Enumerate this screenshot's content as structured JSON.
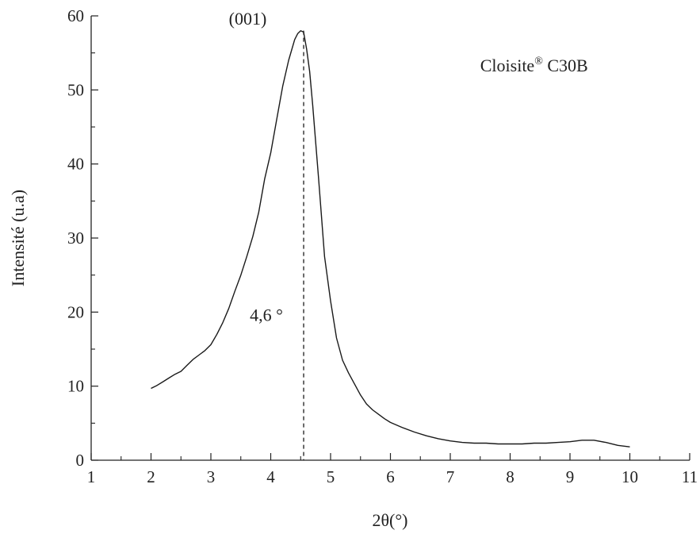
{
  "chart_data": {
    "type": "line",
    "title": "",
    "xlabel": "2θ(°)",
    "ylabel": "Intensité (u.a)",
    "xlim": [
      1,
      11
    ],
    "ylim": [
      0,
      60
    ],
    "x_ticks": [
      1,
      2,
      3,
      4,
      5,
      6,
      7,
      8,
      9,
      10,
      11
    ],
    "y_ticks": [
      0,
      10,
      20,
      30,
      40,
      50,
      60
    ],
    "grid": false,
    "legend": "none",
    "colors": {
      "line": "#1a1a1a",
      "axis": "#222222"
    },
    "series": [
      {
        "x": [
          2.0,
          2.1,
          2.2,
          2.3,
          2.4,
          2.5,
          2.6,
          2.7,
          2.8,
          2.9,
          3.0,
          3.1,
          3.2,
          3.3,
          3.4,
          3.5,
          3.6,
          3.7,
          3.8,
          3.9,
          4.0,
          4.1,
          4.2,
          4.3,
          4.4,
          4.45,
          4.5,
          4.55,
          4.6,
          4.65,
          4.7,
          4.8,
          4.9,
          5.0,
          5.1,
          5.2,
          5.3,
          5.4,
          5.5,
          5.6,
          5.7,
          5.8,
          5.9,
          6.0,
          6.2,
          6.4,
          6.6,
          6.8,
          7.0,
          7.2,
          7.4,
          7.6,
          7.8,
          8.0,
          8.2,
          8.4,
          8.6,
          8.8,
          9.0,
          9.2,
          9.4,
          9.6,
          9.8,
          10.0
        ],
        "values": [
          9.7,
          10.1,
          10.6,
          11.1,
          11.6,
          12.0,
          12.8,
          13.6,
          14.2,
          14.8,
          15.6,
          17.0,
          18.6,
          20.5,
          22.8,
          25.0,
          27.5,
          30.2,
          33.5,
          38.0,
          41.5,
          46.0,
          50.5,
          54.0,
          56.8,
          57.6,
          58.0,
          57.8,
          55.5,
          52.5,
          48.0,
          38.0,
          27.5,
          21.5,
          16.5,
          13.5,
          11.8,
          10.3,
          8.8,
          7.6,
          6.8,
          6.2,
          5.6,
          5.1,
          4.4,
          3.8,
          3.3,
          2.9,
          2.6,
          2.4,
          2.3,
          2.3,
          2.2,
          2.2,
          2.2,
          2.3,
          2.3,
          2.4,
          2.5,
          2.7,
          2.7,
          2.4,
          2.0,
          1.8
        ]
      }
    ],
    "annotations": [
      {
        "text": "(001)",
        "x": 3.3,
        "y": 58.8
      },
      {
        "text": "4,6 °",
        "x": 3.65,
        "y": 18.8
      },
      {
        "text": "Cloisite",
        "sup": "®",
        "text2": " C30B",
        "x": 7.5,
        "y": 52.5
      }
    ],
    "peak_marker": {
      "x": 4.55,
      "y": 58.0,
      "style": "dashed"
    }
  }
}
